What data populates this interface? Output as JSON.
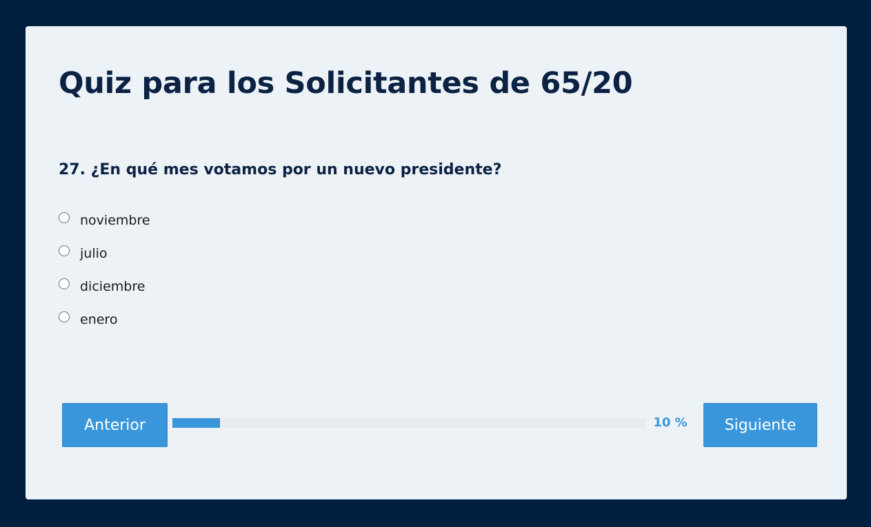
{
  "quiz": {
    "title": "Quiz para los Solicitantes de 65/20",
    "question": "27. ¿En qué mes votamos por un nuevo presidente?",
    "options": [
      "noviembre",
      "julio",
      "diciembre",
      "enero"
    ]
  },
  "navigation": {
    "prev_label": "Anterior",
    "next_label": "Siguiente"
  },
  "progress": {
    "percent": 10,
    "label": "10 %"
  },
  "colors": {
    "background": "#001f3f",
    "card": "#edf2f7",
    "accent": "#3a96db",
    "heading": "#0b2243"
  }
}
